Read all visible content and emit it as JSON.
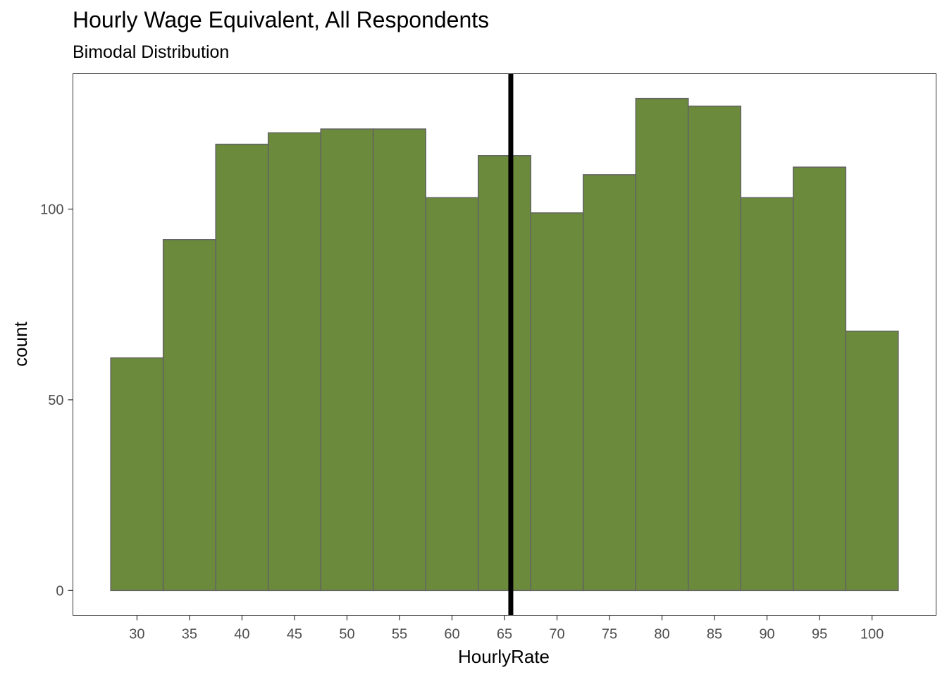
{
  "chart_data": {
    "type": "bar",
    "title": "Hourly Wage Equivalent, All Respondents",
    "subtitle": "Bimodal Distribution",
    "xlabel": "HourlyRate",
    "ylabel": "count",
    "bin_width": 5,
    "bins": [
      {
        "center": 30,
        "count": 61
      },
      {
        "center": 35,
        "count": 92
      },
      {
        "center": 40,
        "count": 117
      },
      {
        "center": 45,
        "count": 120
      },
      {
        "center": 50,
        "count": 121
      },
      {
        "center": 55,
        "count": 121
      },
      {
        "center": 60,
        "count": 103
      },
      {
        "center": 65,
        "count": 114
      },
      {
        "center": 70,
        "count": 99
      },
      {
        "center": 75,
        "count": 109
      },
      {
        "center": 80,
        "count": 129
      },
      {
        "center": 85,
        "count": 127
      },
      {
        "center": 90,
        "count": 103
      },
      {
        "center": 95,
        "count": 111
      },
      {
        "center": 100,
        "count": 68
      }
    ],
    "x_ticks": [
      30,
      35,
      40,
      45,
      50,
      55,
      60,
      65,
      70,
      75,
      80,
      85,
      90,
      95,
      100
    ],
    "y_ticks": [
      0,
      50,
      100
    ],
    "xlim": [
      23.9,
      106.1
    ],
    "ylim": [
      -6.5,
      135.5
    ],
    "vline_x": 65.6,
    "bar_fill": "#6b8a3b",
    "bar_stroke": "#636363",
    "vline_color": "#000000",
    "grid": false,
    "legend": "none"
  }
}
